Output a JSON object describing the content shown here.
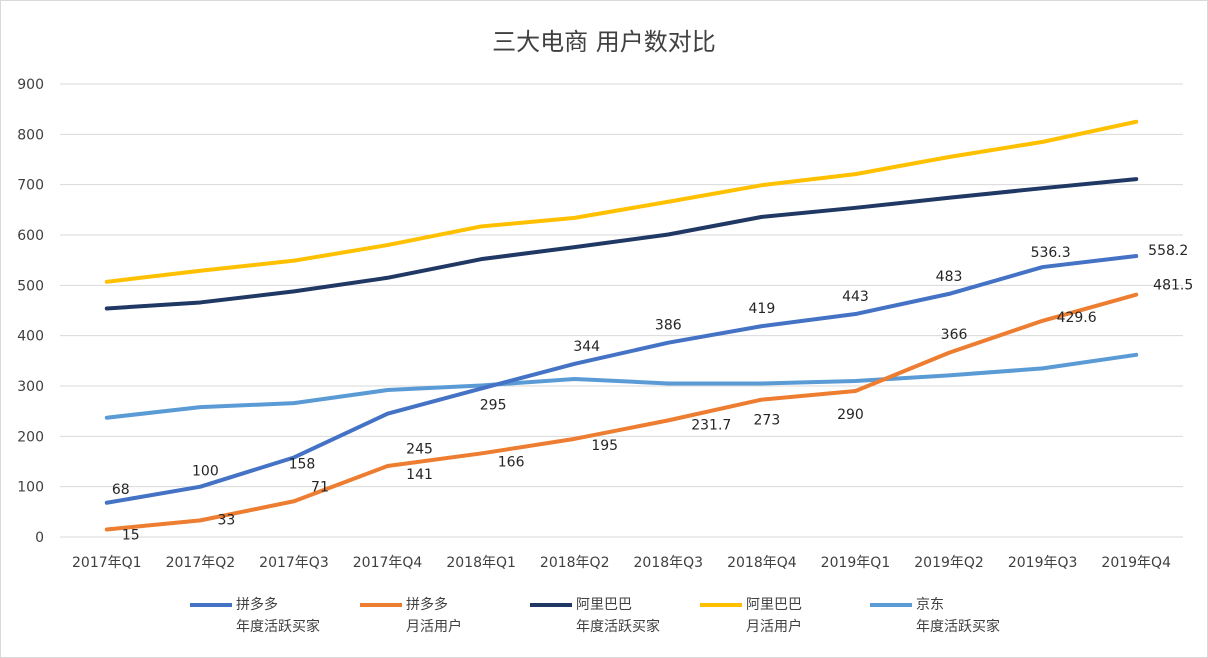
{
  "chart_data": {
    "type": "line",
    "title": "三大电商 用户数对比",
    "categories": [
      "2017年Q1",
      "2017年Q2",
      "2017年Q3",
      "2017年Q4",
      "2018年Q1",
      "2018年Q2",
      "2018年Q3",
      "2018年Q4",
      "2019年Q1",
      "2019年Q2",
      "2019年Q3",
      "2019年Q4"
    ],
    "ylim": [
      0,
      900
    ],
    "yticks": [
      0,
      100,
      200,
      300,
      400,
      500,
      600,
      700,
      800,
      900
    ],
    "grid": true,
    "legend_position": "bottom",
    "series": [
      {
        "name": "拼多多\n年度活跃买家",
        "color": "#4472C4",
        "labels": true,
        "values": [
          68,
          100,
          158,
          245,
          295,
          344,
          386,
          419,
          443,
          483,
          536.3,
          558.2
        ]
      },
      {
        "name": "拼多多\n月活用户",
        "color": "#ED7D31",
        "labels": true,
        "values": [
          15,
          33,
          71,
          141,
          166,
          195,
          231.7,
          273,
          290,
          366,
          429.6,
          481.5
        ]
      },
      {
        "name": "阿里巴巴\n年度活跃买家",
        "color": "#203864",
        "labels": false,
        "values": [
          454,
          466,
          488,
          515,
          552,
          576,
          601,
          636,
          654,
          674,
          693,
          711
        ]
      },
      {
        "name": "阿里巴巴\n月活用户",
        "color": "#FFC000",
        "labels": false,
        "values": [
          507,
          529,
          549,
          580,
          617,
          634,
          666,
          699,
          721,
          755,
          785,
          825
        ]
      },
      {
        "name": "京东\n年度活跃买家",
        "color": "#5B9BD5",
        "labels": false,
        "values": [
          237,
          258,
          266,
          292,
          301,
          314,
          305,
          305,
          310,
          321,
          335,
          362
        ]
      }
    ]
  }
}
